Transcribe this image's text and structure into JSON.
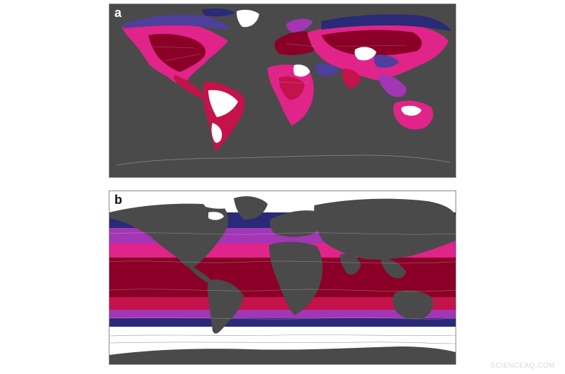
{
  "panels": [
    {
      "label": "a",
      "background": "#4a4a4a"
    },
    {
      "label": "b",
      "background": "#ffffff"
    }
  ],
  "palette": {
    "high": "#8b0026",
    "mid_high": "#c4124a",
    "mid": "#e0248a",
    "mid_low": "#a236b4",
    "low": "#4e3f9c",
    "lowest": "#2a2a78",
    "land_ocean": "#4a4a4a",
    "no_data": "#ffffff"
  },
  "watermark": "SCIENCEAQ.COM"
}
